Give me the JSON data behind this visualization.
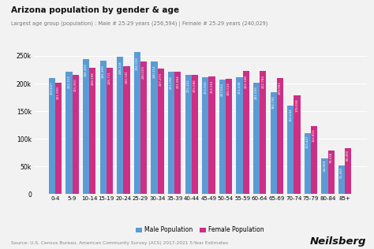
{
  "title": "Arizona population by gender & age",
  "subtitle": "Largest age group (population) : Male # 25-29 years (256,594) | Female # 25-29 years (240,029)",
  "source": "Source: U.S. Census Bureau, American Community Survey (ACS) 2017-2021 5-Year Estimates",
  "categories": [
    "0-4",
    "5-9",
    "10-14",
    "15-19",
    "20-24",
    "25-29",
    "30-34",
    "35-39",
    "40-44",
    "45-49",
    "50-54",
    "55-59",
    "60-64",
    "65-69",
    "70-74",
    "75-79",
    "80-84",
    "85+"
  ],
  "male": [
    210607,
    222113,
    244303,
    241369,
    248118,
    256594,
    240114,
    221056,
    215102,
    212043,
    207654,
    211548,
    201505,
    183792,
    160694,
    110447,
    64069,
    51450
  ],
  "female": [
    201999,
    215910,
    228194,
    228711,
    230741,
    240029,
    227273,
    221964,
    215586,
    213151,
    208534,
    222348,
    222784,
    209992,
    178034,
    122815,
    79536,
    83490
  ],
  "male_color": "#5b9bd5",
  "female_color": "#cc2f84",
  "background_color": "#f2f2f2",
  "ylim": [
    0,
    270000
  ],
  "yticks": [
    0,
    50000,
    100000,
    150000,
    200000,
    250000
  ],
  "legend_labels": [
    "Male Population",
    "Female Population"
  ],
  "brand": "Neilsberg"
}
